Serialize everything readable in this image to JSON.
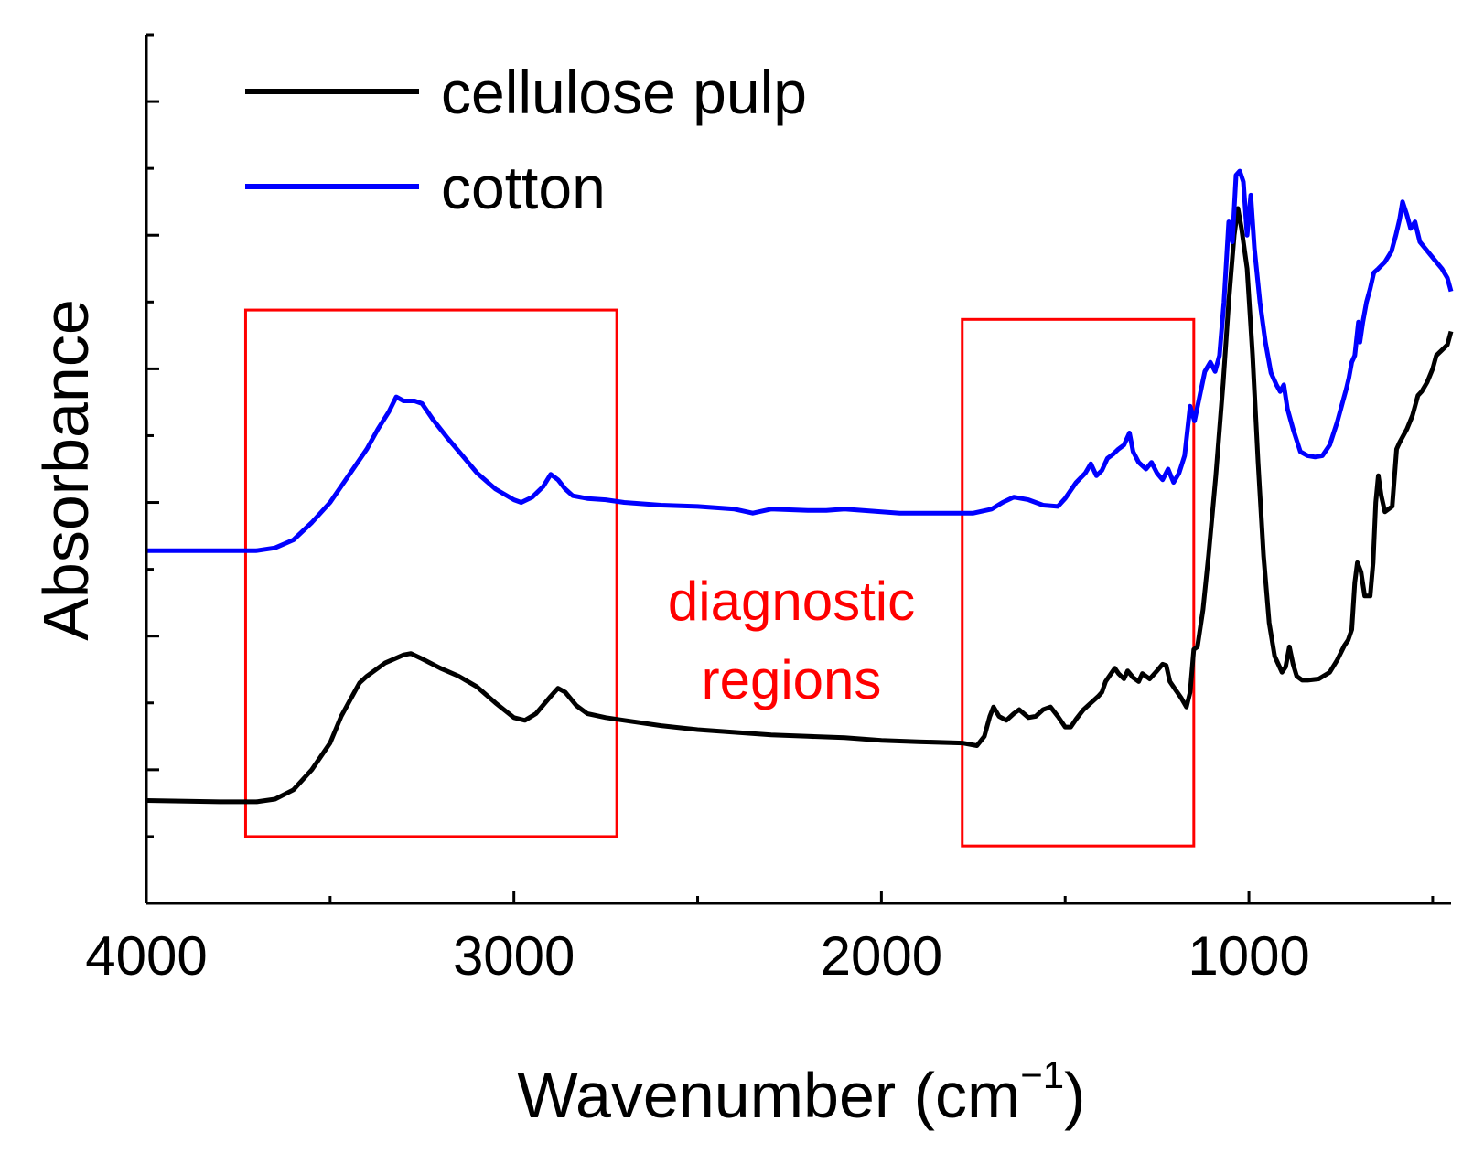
{
  "chart_data": {
    "type": "line",
    "title": "",
    "xlabel": "Wavenumber (cm",
    "xlabel_sup": "−1",
    "xlabel_close": ")",
    "ylabel": "Absorbance",
    "xlim": [
      4000,
      450
    ],
    "ylim": [
      0,
      6.5
    ],
    "x_ticks": [
      4000,
      3000,
      2000,
      1000
    ],
    "x_tick_labels": [
      "4000",
      "3000",
      "2000",
      "1000"
    ],
    "y_tick_labels": [],
    "grid": false,
    "legend_position": "top-left",
    "series": [
      {
        "name": "cellulose pulp",
        "color": "#000000",
        "points": [
          [
            4000,
            0.77
          ],
          [
            3800,
            0.76
          ],
          [
            3700,
            0.76
          ],
          [
            3650,
            0.78
          ],
          [
            3600,
            0.85
          ],
          [
            3550,
            1.0
          ],
          [
            3500,
            1.2
          ],
          [
            3470,
            1.4
          ],
          [
            3440,
            1.55
          ],
          [
            3420,
            1.65
          ],
          [
            3400,
            1.7
          ],
          [
            3350,
            1.8
          ],
          [
            3300,
            1.86
          ],
          [
            3280,
            1.87
          ],
          [
            3250,
            1.83
          ],
          [
            3200,
            1.76
          ],
          [
            3150,
            1.7
          ],
          [
            3100,
            1.62
          ],
          [
            3050,
            1.5
          ],
          [
            3000,
            1.39
          ],
          [
            2970,
            1.37
          ],
          [
            2940,
            1.42
          ],
          [
            2900,
            1.55
          ],
          [
            2880,
            1.61
          ],
          [
            2860,
            1.58
          ],
          [
            2830,
            1.48
          ],
          [
            2800,
            1.42
          ],
          [
            2750,
            1.39
          ],
          [
            2700,
            1.37
          ],
          [
            2600,
            1.33
          ],
          [
            2500,
            1.3
          ],
          [
            2400,
            1.28
          ],
          [
            2300,
            1.26
          ],
          [
            2200,
            1.25
          ],
          [
            2100,
            1.24
          ],
          [
            2000,
            1.22
          ],
          [
            1900,
            1.21
          ],
          [
            1780,
            1.2
          ],
          [
            1740,
            1.18
          ],
          [
            1720,
            1.25
          ],
          [
            1705,
            1.4
          ],
          [
            1695,
            1.47
          ],
          [
            1680,
            1.4
          ],
          [
            1660,
            1.37
          ],
          [
            1640,
            1.42
          ],
          [
            1625,
            1.45
          ],
          [
            1600,
            1.39
          ],
          [
            1580,
            1.4
          ],
          [
            1560,
            1.45
          ],
          [
            1540,
            1.47
          ],
          [
            1520,
            1.4
          ],
          [
            1500,
            1.32
          ],
          [
            1485,
            1.32
          ],
          [
            1470,
            1.38
          ],
          [
            1450,
            1.45
          ],
          [
            1430,
            1.5
          ],
          [
            1410,
            1.55
          ],
          [
            1400,
            1.58
          ],
          [
            1390,
            1.66
          ],
          [
            1375,
            1.72
          ],
          [
            1365,
            1.76
          ],
          [
            1355,
            1.72
          ],
          [
            1340,
            1.68
          ],
          [
            1330,
            1.74
          ],
          [
            1315,
            1.69
          ],
          [
            1300,
            1.66
          ],
          [
            1290,
            1.72
          ],
          [
            1270,
            1.68
          ],
          [
            1250,
            1.74
          ],
          [
            1235,
            1.79
          ],
          [
            1225,
            1.78
          ],
          [
            1215,
            1.66
          ],
          [
            1200,
            1.6
          ],
          [
            1185,
            1.54
          ],
          [
            1170,
            1.47
          ],
          [
            1160,
            1.58
          ],
          [
            1150,
            1.9
          ],
          [
            1140,
            1.92
          ],
          [
            1125,
            2.2
          ],
          [
            1110,
            2.6
          ],
          [
            1090,
            3.2
          ],
          [
            1070,
            3.9
          ],
          [
            1055,
            4.5
          ],
          [
            1040,
            5.0
          ],
          [
            1030,
            5.2
          ],
          [
            1020,
            5.05
          ],
          [
            1005,
            4.75
          ],
          [
            990,
            4.1
          ],
          [
            975,
            3.3
          ],
          [
            960,
            2.6
          ],
          [
            945,
            2.1
          ],
          [
            930,
            1.85
          ],
          [
            910,
            1.73
          ],
          [
            900,
            1.77
          ],
          [
            890,
            1.92
          ],
          [
            880,
            1.79
          ],
          [
            870,
            1.7
          ],
          [
            855,
            1.67
          ],
          [
            840,
            1.67
          ],
          [
            810,
            1.68
          ],
          [
            780,
            1.73
          ],
          [
            760,
            1.82
          ],
          [
            740,
            1.93
          ],
          [
            730,
            1.97
          ],
          [
            720,
            2.05
          ],
          [
            712,
            2.4
          ],
          [
            705,
            2.55
          ],
          [
            695,
            2.48
          ],
          [
            685,
            2.3
          ],
          [
            670,
            2.3
          ],
          [
            662,
            2.55
          ],
          [
            655,
            3.0
          ],
          [
            648,
            3.2
          ],
          [
            640,
            3.05
          ],
          [
            630,
            2.93
          ],
          [
            610,
            2.97
          ],
          [
            598,
            3.4
          ],
          [
            590,
            3.45
          ],
          [
            580,
            3.5
          ],
          [
            570,
            3.55
          ],
          [
            555,
            3.65
          ],
          [
            540,
            3.8
          ],
          [
            530,
            3.83
          ],
          [
            515,
            3.9
          ],
          [
            500,
            4.0
          ],
          [
            490,
            4.1
          ],
          [
            475,
            4.14
          ],
          [
            460,
            4.18
          ],
          [
            450,
            4.28
          ]
        ]
      },
      {
        "name": "cotton",
        "color": "#0000ff",
        "points": [
          [
            4000,
            2.64
          ],
          [
            3800,
            2.64
          ],
          [
            3700,
            2.64
          ],
          [
            3650,
            2.66
          ],
          [
            3600,
            2.72
          ],
          [
            3550,
            2.85
          ],
          [
            3500,
            3.0
          ],
          [
            3450,
            3.2
          ],
          [
            3400,
            3.4
          ],
          [
            3370,
            3.55
          ],
          [
            3340,
            3.68
          ],
          [
            3320,
            3.79
          ],
          [
            3300,
            3.76
          ],
          [
            3270,
            3.76
          ],
          [
            3250,
            3.74
          ],
          [
            3220,
            3.62
          ],
          [
            3180,
            3.48
          ],
          [
            3140,
            3.35
          ],
          [
            3100,
            3.22
          ],
          [
            3050,
            3.1
          ],
          [
            3000,
            3.02
          ],
          [
            2980,
            3.0
          ],
          [
            2950,
            3.04
          ],
          [
            2920,
            3.12
          ],
          [
            2900,
            3.21
          ],
          [
            2880,
            3.17
          ],
          [
            2860,
            3.1
          ],
          [
            2840,
            3.05
          ],
          [
            2800,
            3.03
          ],
          [
            2750,
            3.02
          ],
          [
            2700,
            3.0
          ],
          [
            2600,
            2.98
          ],
          [
            2500,
            2.97
          ],
          [
            2400,
            2.95
          ],
          [
            2350,
            2.92
          ],
          [
            2300,
            2.95
          ],
          [
            2200,
            2.94
          ],
          [
            2150,
            2.94
          ],
          [
            2100,
            2.95
          ],
          [
            2000,
            2.93
          ],
          [
            1950,
            2.92
          ],
          [
            1900,
            2.92
          ],
          [
            1800,
            2.92
          ],
          [
            1750,
            2.92
          ],
          [
            1700,
            2.95
          ],
          [
            1670,
            3.0
          ],
          [
            1640,
            3.04
          ],
          [
            1600,
            3.02
          ],
          [
            1560,
            2.98
          ],
          [
            1520,
            2.97
          ],
          [
            1500,
            3.03
          ],
          [
            1470,
            3.15
          ],
          [
            1445,
            3.22
          ],
          [
            1430,
            3.29
          ],
          [
            1415,
            3.2
          ],
          [
            1400,
            3.24
          ],
          [
            1385,
            3.33
          ],
          [
            1370,
            3.36
          ],
          [
            1355,
            3.4
          ],
          [
            1340,
            3.43
          ],
          [
            1325,
            3.52
          ],
          [
            1315,
            3.38
          ],
          [
            1300,
            3.3
          ],
          [
            1280,
            3.25
          ],
          [
            1265,
            3.3
          ],
          [
            1250,
            3.22
          ],
          [
            1235,
            3.17
          ],
          [
            1220,
            3.25
          ],
          [
            1205,
            3.15
          ],
          [
            1190,
            3.22
          ],
          [
            1175,
            3.35
          ],
          [
            1160,
            3.72
          ],
          [
            1148,
            3.61
          ],
          [
            1135,
            3.78
          ],
          [
            1120,
            3.98
          ],
          [
            1105,
            4.05
          ],
          [
            1092,
            3.98
          ],
          [
            1080,
            4.1
          ],
          [
            1068,
            4.5
          ],
          [
            1055,
            5.1
          ],
          [
            1045,
            4.95
          ],
          [
            1035,
            5.45
          ],
          [
            1025,
            5.48
          ],
          [
            1015,
            5.4
          ],
          [
            1005,
            5.0
          ],
          [
            995,
            5.3
          ],
          [
            985,
            4.9
          ],
          [
            970,
            4.5
          ],
          [
            955,
            4.2
          ],
          [
            940,
            3.97
          ],
          [
            925,
            3.88
          ],
          [
            915,
            3.83
          ],
          [
            905,
            3.88
          ],
          [
            895,
            3.7
          ],
          [
            880,
            3.55
          ],
          [
            860,
            3.38
          ],
          [
            840,
            3.35
          ],
          [
            820,
            3.34
          ],
          [
            800,
            3.35
          ],
          [
            780,
            3.43
          ],
          [
            760,
            3.6
          ],
          [
            745,
            3.75
          ],
          [
            735,
            3.85
          ],
          [
            728,
            3.93
          ],
          [
            720,
            4.05
          ],
          [
            712,
            4.1
          ],
          [
            702,
            4.35
          ],
          [
            698,
            4.2
          ],
          [
            690,
            4.35
          ],
          [
            680,
            4.5
          ],
          [
            670,
            4.6
          ],
          [
            660,
            4.72
          ],
          [
            648,
            4.75
          ],
          [
            630,
            4.8
          ],
          [
            612,
            4.88
          ],
          [
            600,
            5.0
          ],
          [
            590,
            5.12
          ],
          [
            582,
            5.25
          ],
          [
            570,
            5.15
          ],
          [
            560,
            5.05
          ],
          [
            548,
            5.1
          ],
          [
            535,
            4.95
          ],
          [
            520,
            4.9
          ],
          [
            505,
            4.85
          ],
          [
            490,
            4.8
          ],
          [
            475,
            4.75
          ],
          [
            460,
            4.68
          ],
          [
            450,
            4.58
          ]
        ]
      }
    ],
    "annotations": [
      {
        "kind": "box",
        "color": "#ff0000",
        "x_range": [
          3730,
          2720
        ],
        "y_range": [
          0.5,
          4.44
        ]
      },
      {
        "kind": "box",
        "color": "#ff0000",
        "x_range": [
          1780,
          1150
        ],
        "y_range": [
          0.43,
          4.37
        ]
      },
      {
        "kind": "text",
        "color": "#ff0000",
        "lines": [
          "diagnostic",
          "regions"
        ]
      }
    ]
  }
}
